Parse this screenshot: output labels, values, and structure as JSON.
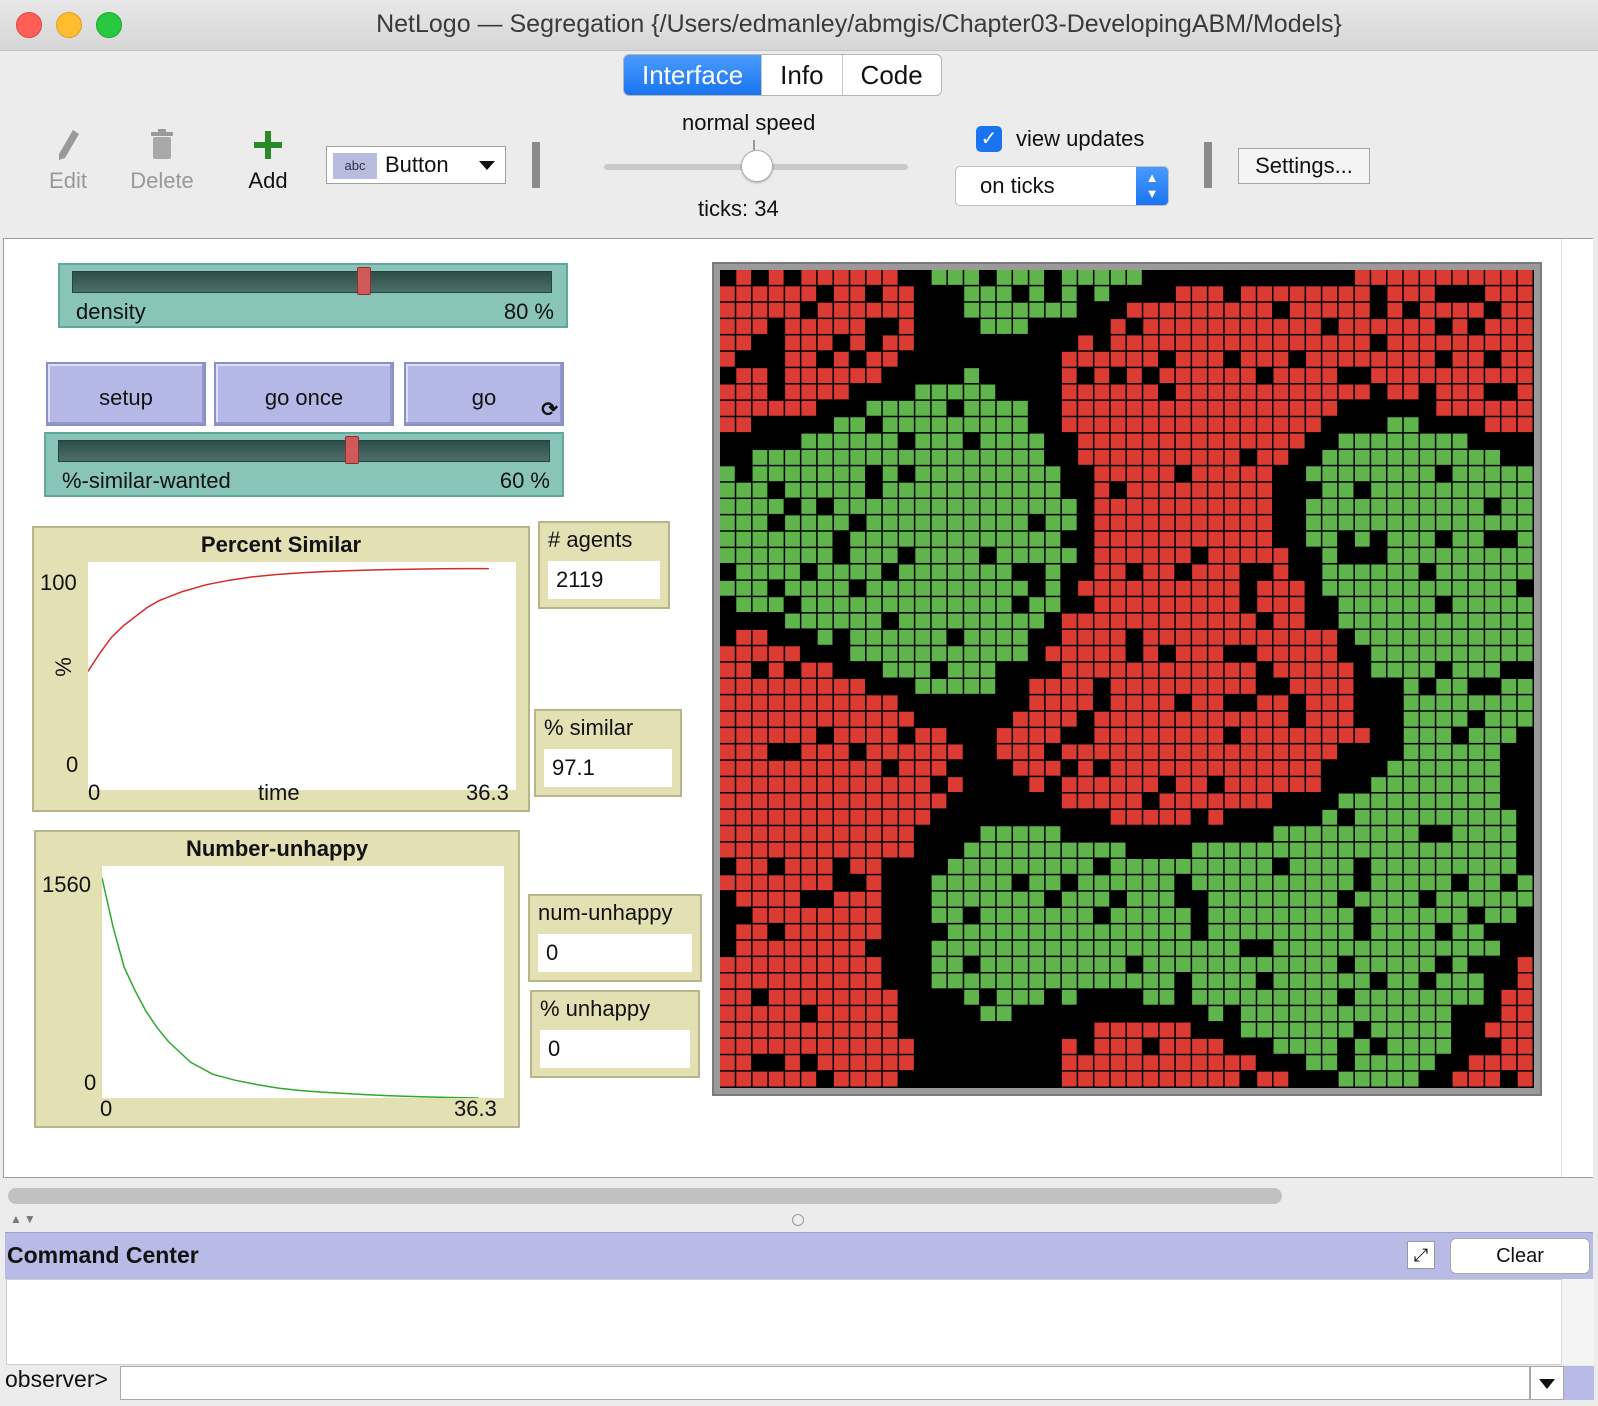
{
  "window": {
    "title": "NetLogo — Segregation {/Users/edmanley/abmgis/Chapter03-DevelopingABM/Models}"
  },
  "tabs": [
    {
      "label": "Interface",
      "active": true
    },
    {
      "label": "Info",
      "active": false
    },
    {
      "label": "Code",
      "active": false
    }
  ],
  "toolbar": {
    "edit_label": "Edit",
    "delete_label": "Delete",
    "add_label": "Add",
    "widget_type": "Button",
    "widget_type_icon_text": "abc",
    "speed_label": "normal speed",
    "speed_value": 0.5,
    "ticks_text": "ticks: 34",
    "view_updates_label": "view updates",
    "view_updates_checked": true,
    "update_mode": "on ticks",
    "settings_label": "Settings..."
  },
  "widgets": {
    "density": {
      "label": "density",
      "value_text": "80 %",
      "value": 80,
      "min": 50,
      "max": 99
    },
    "setup": {
      "label": "setup"
    },
    "go_once": {
      "label": "go once"
    },
    "go": {
      "label": "go",
      "forever": true
    },
    "similar_wanted": {
      "label": "%-similar-wanted",
      "value_text": "60 %",
      "value": 60,
      "min": 0,
      "max": 100
    },
    "agents_monitor": {
      "label": "# agents",
      "value": "2119"
    },
    "similar_monitor": {
      "label": "% similar",
      "value": "97.1"
    },
    "num_unhappy_monitor": {
      "label": "num-unhappy",
      "value": "0"
    },
    "pct_unhappy_monitor": {
      "label": "% unhappy",
      "value": "0"
    }
  },
  "plots": {
    "percent_similar": {
      "title": "Percent Similar",
      "ylabel": "%",
      "xlabel": "time",
      "ymin_label": "0",
      "ymax_label": "100",
      "xmin_label": "0",
      "xmax_label": "36.3",
      "color": "#d62a2a"
    },
    "number_unhappy": {
      "title": "Number-unhappy",
      "ymin_label": "0",
      "ymax_label": "1560",
      "xmin_label": "0",
      "xmax_label": "36.3",
      "color": "#2fa82f"
    }
  },
  "chart_data": [
    {
      "type": "line",
      "title": "Percent Similar",
      "xlabel": "time",
      "ylabel": "%",
      "xlim": [
        0,
        36.3
      ],
      "ylim": [
        0,
        100
      ],
      "x": [
        0,
        1,
        2,
        3,
        4,
        5,
        6,
        8,
        10,
        12,
        14,
        16,
        18,
        20,
        22,
        24,
        26,
        28,
        30,
        32,
        34
      ],
      "series": [
        {
          "name": "percent",
          "values": [
            52,
            60,
            67,
            72,
            76,
            80,
            83,
            87,
            90,
            92,
            93.5,
            94.5,
            95.2,
            95.8,
            96.2,
            96.5,
            96.7,
            96.9,
            97.0,
            97.1,
            97.1
          ]
        }
      ]
    },
    {
      "type": "line",
      "title": "Number-unhappy",
      "xlim": [
        0,
        36.3
      ],
      "ylim": [
        0,
        1560
      ],
      "x": [
        0,
        1,
        2,
        3,
        4,
        5,
        6,
        8,
        10,
        12,
        14,
        16,
        18,
        20,
        22,
        24,
        26,
        28,
        30,
        32,
        34
      ],
      "series": [
        {
          "name": "unhappy",
          "values": [
            1480,
            1150,
            880,
            720,
            580,
            470,
            380,
            240,
            160,
            120,
            90,
            65,
            50,
            38,
            30,
            22,
            15,
            10,
            6,
            3,
            0
          ]
        }
      ]
    }
  ],
  "world": {
    "cols": 50,
    "rows": 50,
    "colors": {
      "red": "#dc3b33",
      "green": "#5fb44b",
      "empty": "#000000",
      "grid": "#8a8a8a"
    }
  },
  "command_center": {
    "title": "Command Center",
    "clear_label": "Clear",
    "prompt": "observer>",
    "expand_icon": "expand-icon"
  }
}
